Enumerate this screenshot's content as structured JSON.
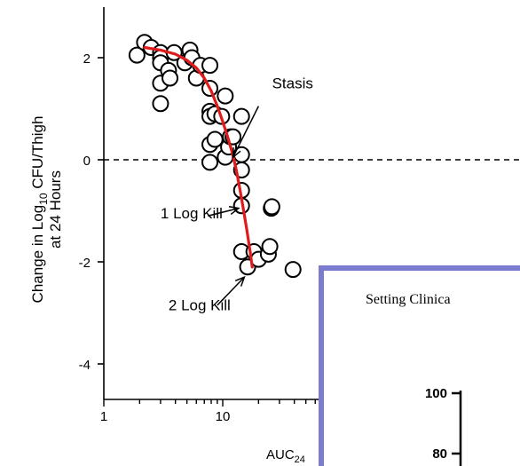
{
  "chart_data": {
    "type": "scatter",
    "title": "",
    "ylabel": "Change in Log10 CFU/Thigh at 24 Hours",
    "ylabel_line1_main": "Change in Log",
    "ylabel_line1_sub": "10",
    "ylabel_line1_end": " CFU/Thigh",
    "ylabel_line2": "at 24 Hours",
    "xlabel_main": "AUC",
    "xlabel_sub": "24",
    "x_scale": "log",
    "xlim": [
      1,
      100
    ],
    "ylim": [
      -5,
      3
    ],
    "x_ticks": [
      1,
      10
    ],
    "x_tick_labels": [
      "1",
      "10"
    ],
    "y_ticks": [
      2,
      0,
      -2,
      -4
    ],
    "y_tick_labels": [
      "2",
      "0",
      "-2",
      "-4"
    ],
    "stasis_line_y": 0,
    "points": [
      [
        1.9,
        2.05
      ],
      [
        2.2,
        2.3
      ],
      [
        2.5,
        2.2
      ],
      [
        3.0,
        2.1
      ],
      [
        3.0,
        2.0
      ],
      [
        3.0,
        1.9
      ],
      [
        3.0,
        1.5
      ],
      [
        3.0,
        1.1
      ],
      [
        3.5,
        1.75
      ],
      [
        3.6,
        1.6
      ],
      [
        3.9,
        2.1
      ],
      [
        4.8,
        1.9
      ],
      [
        5.3,
        2.15
      ],
      [
        5.5,
        2.0
      ],
      [
        6.0,
        1.6
      ],
      [
        6.5,
        1.85
      ],
      [
        7.8,
        1.85
      ],
      [
        7.8,
        1.4
      ],
      [
        7.8,
        0.95
      ],
      [
        7.8,
        0.85
      ],
      [
        7.8,
        0.3
      ],
      [
        7.8,
        -0.05
      ],
      [
        8.6,
        0.4
      ],
      [
        8.6,
        0.9
      ],
      [
        9.8,
        0.85
      ],
      [
        10.5,
        1.25
      ],
      [
        10.5,
        0.05
      ],
      [
        11.2,
        0.25
      ],
      [
        11.6,
        0.45
      ],
      [
        12.2,
        0.45
      ],
      [
        14.4,
        0.85
      ],
      [
        14.4,
        0.1
      ],
      [
        14.4,
        -0.2
      ],
      [
        14.4,
        -0.6
      ],
      [
        14.4,
        -0.9
      ],
      [
        14.4,
        -1.8
      ],
      [
        16.2,
        -2.1
      ],
      [
        18.3,
        -1.8
      ],
      [
        20,
        -1.95
      ],
      [
        24.2,
        -1.85
      ],
      [
        24.9,
        -1.7
      ],
      [
        25.6,
        -0.95
      ],
      [
        25.9,
        -0.92
      ],
      [
        39,
        -2.15
      ]
    ],
    "fit_line": {
      "color": "#e01b1b",
      "points": [
        [
          2.2,
          2.2
        ],
        [
          3.0,
          2.15
        ],
        [
          4.0,
          2.07
        ],
        [
          5.0,
          1.95
        ],
        [
          6.0,
          1.8
        ],
        [
          7.0,
          1.6
        ],
        [
          8.0,
          1.35
        ],
        [
          9.0,
          1.05
        ],
        [
          10.0,
          0.75
        ],
        [
          11.0,
          0.45
        ],
        [
          12.0,
          0.15
        ],
        [
          13.0,
          -0.2
        ],
        [
          14.0,
          -0.6
        ],
        [
          15.0,
          -1.0
        ],
        [
          16.0,
          -1.4
        ],
        [
          17.0,
          -1.8
        ],
        [
          17.7,
          -2.1
        ]
      ]
    },
    "annotations": [
      {
        "text": "Stasis",
        "label_x": 26,
        "label_y": 1.4,
        "arrow_from": [
          20,
          1.05
        ],
        "arrow_to": [
          12.2,
          0.05
        ]
      },
      {
        "text": "1 Log Kill",
        "label_x": 3.0,
        "label_y": -1.15,
        "arrow_from": [
          7.5,
          -1.1
        ],
        "arrow_to": [
          13.6,
          -0.95
        ]
      },
      {
        "text": "2 Log Kill",
        "label_x": 3.5,
        "label_y": -2.95,
        "arrow_from": [
          9.0,
          -2.85
        ],
        "arrow_to": [
          15.2,
          -2.3
        ]
      }
    ],
    "colors": {
      "axis": "#000000",
      "points": "#000000",
      "fit": "#e01b1b"
    }
  },
  "inset": {
    "text": "Setting Clinica",
    "tick_100": "100",
    "tick_80": "80",
    "border_color": "#7b7bd0"
  }
}
